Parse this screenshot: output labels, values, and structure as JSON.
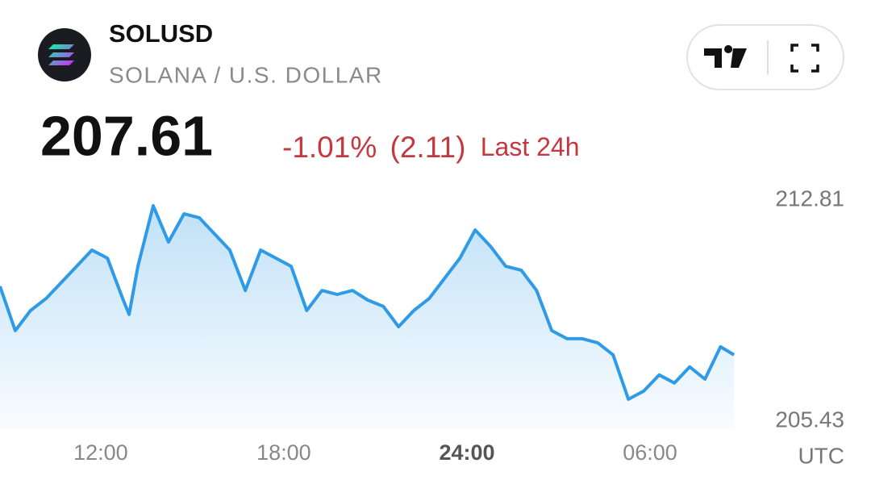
{
  "chart_data": {
    "type": "line",
    "title": "SOLUSD",
    "subtitle": "SOLANA / U.S. DOLLAR",
    "price": "207.61",
    "change_percent": "-1.01%",
    "change": "(2.11)",
    "change_period": "Last 24h",
    "x_label": "UTC",
    "color": "#2f9be6",
    "change_color": "#c4393f",
    "x": [
      8.7,
      9.2,
      9.7,
      10.21,
      10.71,
      11.21,
      11.71,
      12.22,
      12.72,
      12.93,
      13.22,
      13.72,
      14.22,
      14.73,
      15.23,
      15.73,
      16.23,
      16.74,
      17.24,
      17.74,
      18.24,
      18.75,
      19.25,
      19.75,
      20.25,
      20.75,
      21.26,
      21.76,
      22.26,
      22.76,
      23.27,
      23.77,
      24.27,
      24.77,
      25.27,
      25.78,
      26.28,
      26.78,
      27.28,
      27.79,
      28.29,
      28.79,
      29.29,
      29.79,
      30.3,
      30.8,
      31.3,
      31.8,
      32.31,
      32.75
    ],
    "values": [
      209.93,
      208.45,
      209.12,
      209.52,
      210.06,
      210.6,
      211.14,
      210.87,
      209.52,
      208.99,
      210.6,
      212.62,
      211.41,
      212.35,
      212.22,
      211.68,
      211.14,
      209.79,
      211.14,
      210.87,
      210.6,
      209.12,
      209.79,
      209.66,
      209.79,
      209.47,
      209.26,
      208.58,
      209.12,
      209.52,
      210.2,
      210.87,
      211.81,
      211.27,
      210.6,
      210.47,
      209.79,
      208.45,
      208.18,
      208.18,
      208.04,
      207.64,
      206.16,
      206.43,
      206.97,
      206.7,
      207.24,
      206.83,
      207.91,
      207.64
    ],
    "xlim": [
      8.7,
      37.24
    ],
    "xticks": [
      {
        "value": 12,
        "label": "12:00"
      },
      {
        "value": 18,
        "label": "18:00"
      },
      {
        "value": 24,
        "label": "24:00",
        "bold": true
      },
      {
        "value": 30,
        "label": "06:00"
      }
    ],
    "ylim": [
      205.43,
      212.81
    ],
    "yticks": [
      205.43,
      212.81
    ]
  }
}
